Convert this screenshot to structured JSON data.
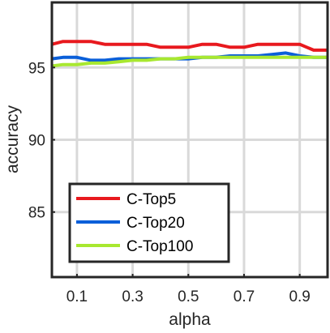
{
  "chart_data": {
    "type": "line",
    "title": "",
    "xlabel": "alpha",
    "ylabel": "accuracy",
    "xlim": [
      0.01,
      1.0
    ],
    "ylim": [
      80.5,
      99.5
    ],
    "xticks": [
      0.1,
      0.3,
      0.5,
      0.7,
      0.9
    ],
    "xtick_labels": [
      "0.1",
      "0.3",
      "0.5",
      "0.7",
      "0.9"
    ],
    "yticks": [
      85,
      90,
      95
    ],
    "ytick_labels": [
      "85",
      "90",
      "95"
    ],
    "grid": true,
    "legend_position": "bottom-left",
    "x": [
      0.01,
      0.05,
      0.1,
      0.15,
      0.2,
      0.25,
      0.3,
      0.35,
      0.4,
      0.45,
      0.5,
      0.55,
      0.6,
      0.65,
      0.7,
      0.75,
      0.8,
      0.85,
      0.9,
      0.95,
      1.0
    ],
    "series": [
      {
        "name": "C-Top5",
        "color": "#e8191e",
        "values": [
          96.6,
          96.8,
          96.8,
          96.8,
          96.6,
          96.6,
          96.6,
          96.6,
          96.4,
          96.4,
          96.4,
          96.6,
          96.6,
          96.4,
          96.4,
          96.6,
          96.6,
          96.6,
          96.6,
          96.2,
          96.2
        ]
      },
      {
        "name": "C-Top20",
        "color": "#0a5fd9",
        "values": [
          95.6,
          95.7,
          95.7,
          95.5,
          95.5,
          95.6,
          95.6,
          95.6,
          95.6,
          95.6,
          95.6,
          95.7,
          95.7,
          95.8,
          95.8,
          95.8,
          95.9,
          96.0,
          95.8,
          95.7,
          95.7
        ]
      },
      {
        "name": "C-Top100",
        "color": "#a8e830",
        "values": [
          95.1,
          95.2,
          95.2,
          95.3,
          95.3,
          95.4,
          95.5,
          95.5,
          95.6,
          95.6,
          95.7,
          95.7,
          95.7,
          95.7,
          95.7,
          95.7,
          95.7,
          95.7,
          95.7,
          95.7,
          95.7
        ]
      }
    ]
  }
}
